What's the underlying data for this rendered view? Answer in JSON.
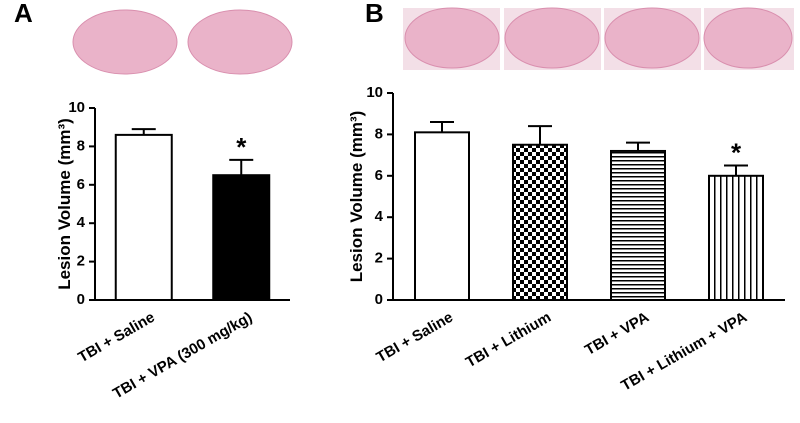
{
  "chart_data": [
    {
      "type": "bar",
      "panel_label": "A",
      "ylabel": "Lesion Volume (mm³)",
      "categories": [
        "TBI + Saline",
        "TBI + VPA (300 mg/kg)"
      ],
      "values": [
        8.6,
        6.5
      ],
      "errors": [
        0.3,
        0.8
      ],
      "fills": [
        "white",
        "black"
      ],
      "ylim": [
        0,
        10
      ],
      "yticks": [
        0,
        2,
        4,
        6,
        8,
        10
      ],
      "annotations": [
        {
          "text": "*",
          "x": "TBI + VPA (300 mg/kg)"
        }
      ]
    },
    {
      "type": "bar",
      "panel_label": "B",
      "ylabel": "Lesion Volume (mm³)",
      "categories": [
        "TBI + Saline",
        "TBI + Lithium",
        "TBI + VPA",
        "TBI + Lithium + VPA"
      ],
      "values": [
        8.1,
        7.5,
        7.2,
        6.0
      ],
      "errors": [
        0.5,
        0.9,
        0.4,
        0.5
      ],
      "fills": [
        "white",
        "checker",
        "hlines",
        "vlines"
      ],
      "ylim": [
        0,
        10
      ],
      "yticks": [
        0,
        2,
        4,
        6,
        8,
        10
      ],
      "annotations": [
        {
          "text": "*",
          "x": "TBI + Lithium + VPA"
        }
      ]
    }
  ]
}
